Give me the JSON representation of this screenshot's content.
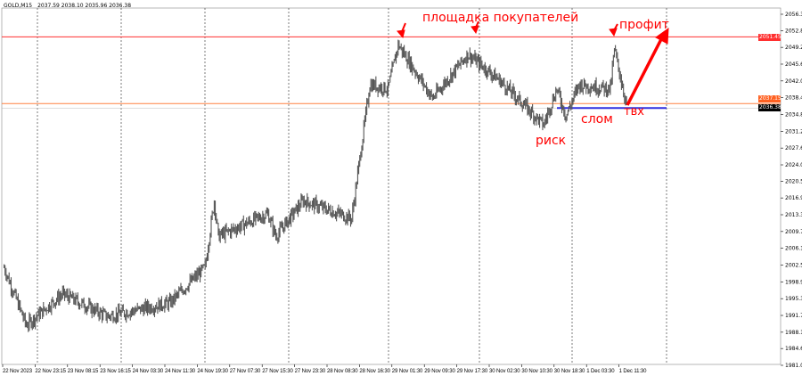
{
  "header": {
    "symbol": "GOLD,M15",
    "ohlc": "2037.59 2038.10 2035.96 2036.38"
  },
  "colors": {
    "resistance": "#ff3030",
    "entry_line": "#ff8040",
    "breakout_line": "#3030e0",
    "price": "#555555",
    "annotation": "#ff0000"
  },
  "annotations": {
    "buyers_zone": "площадка покупателей",
    "profit": "профит",
    "risk": "риск",
    "break": "слом",
    "entry": "твх"
  },
  "price_badges": {
    "resistance": "2051.45",
    "entry": "2037.15",
    "current": "2036.38"
  },
  "chart_data": {
    "type": "line",
    "price_axis": {
      "min": 1981.0,
      "max": 2056.3,
      "ticks": [
        "2056.30",
        "2052.80",
        "2049.20",
        "2045.60",
        "2042.00",
        "2038.40",
        "2034.80",
        "2031.20",
        "2027.60",
        "2024.00",
        "2020.50",
        "2016.90",
        "2013.30",
        "2009.70",
        "2006.10",
        "2002.50",
        "1998.90",
        "1995.30",
        "1991.70",
        "1988.10",
        "1984.60",
        "1981.00"
      ]
    },
    "time_ticks": [
      "22 Nov 2023",
      "22 Nov 23:15",
      "23 Nov 08:15",
      "23 Nov 16:15",
      "24 Nov 03:30",
      "24 Nov 11:30",
      "24 Nov 19:30",
      "27 Nov 07:30",
      "27 Nov 15:30",
      "27 Nov 23:30",
      "28 Nov 08:30",
      "28 Nov 16:30",
      "29 Nov 01:30",
      "29 Nov 09:30",
      "29 Nov 17:30",
      "30 Nov 02:30",
      "30 Nov 10:30",
      "30 Nov 18:30",
      "1 Dec 03:30",
      "1 Dec 11:30"
    ],
    "levels": {
      "resistance": 2051.45,
      "entry": 2037.15,
      "breakout": 2036.38
    },
    "waypoints": [
      [
        4,
        2002.0
      ],
      [
        26,
        1989.6
      ],
      [
        62,
        1996.3
      ],
      [
        106,
        1991.5
      ],
      [
        168,
        1994.4
      ],
      [
        203,
        2002.0
      ],
      [
        212,
        2016.3
      ],
      [
        216,
        2008.7
      ],
      [
        265,
        2013.5
      ],
      [
        273,
        2008.7
      ],
      [
        300,
        2016.3
      ],
      [
        348,
        2012.5
      ],
      [
        357,
        2026.9
      ],
      [
        366,
        2041.2
      ],
      [
        384,
        2040.3
      ],
      [
        394,
        2049.8
      ],
      [
        428,
        2038.3
      ],
      [
        463,
        2047.7
      ],
      [
        494,
        2042.2
      ],
      [
        538,
        2032.6
      ],
      [
        551,
        2040.3
      ],
      [
        560,
        2034.5
      ],
      [
        573,
        2041.2
      ],
      [
        604,
        2040.3
      ],
      [
        608,
        2048.8
      ],
      [
        620,
        2036.8
      ]
    ]
  }
}
